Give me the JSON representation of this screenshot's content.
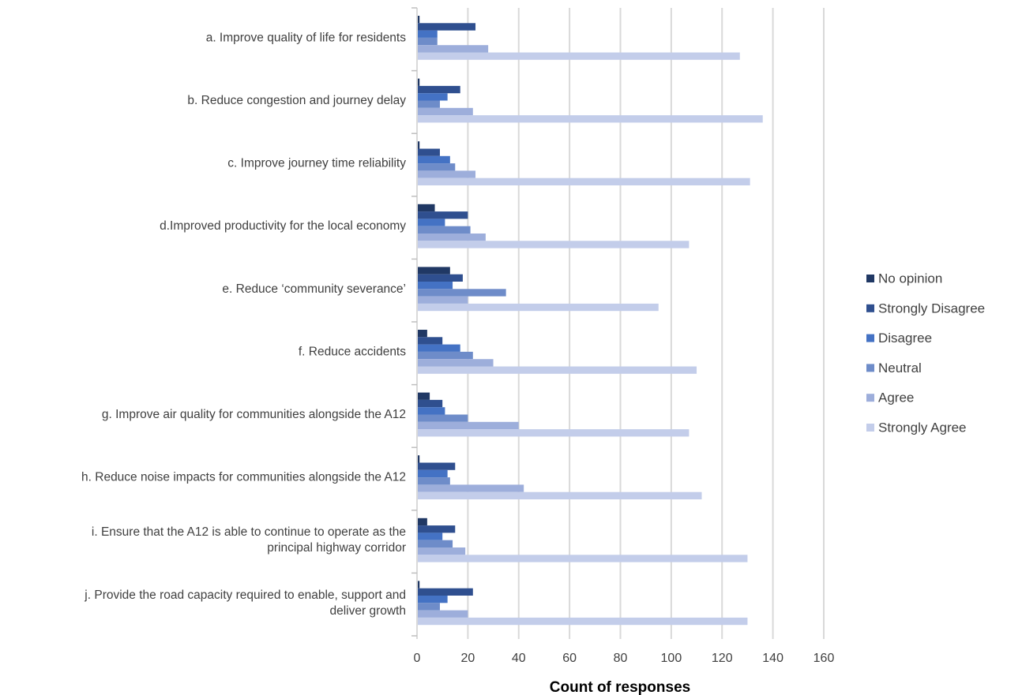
{
  "chart_data": {
    "type": "bar",
    "orientation": "horizontal",
    "title": "",
    "xlabel": "Count of responses",
    "ylabel": "",
    "xlim": [
      0,
      160
    ],
    "xticks": [
      0,
      20,
      40,
      60,
      80,
      100,
      120,
      140,
      160
    ],
    "grid": true,
    "legend_position": "right",
    "categories": [
      [
        "a. Improve quality of life for residents"
      ],
      [
        "b. Reduce congestion and journey delay"
      ],
      [
        "c. Improve journey time reliability"
      ],
      [
        "d.Improved productivity for the local  economy"
      ],
      [
        "e. Reduce ‘community severance’"
      ],
      [
        "f. Reduce accidents"
      ],
      [
        "g. Improve air quality for communities alongside the A12"
      ],
      [
        "h. Reduce noise impacts for communities alongside the A12"
      ],
      [
        "i.  Ensure that the A12 is able to continue to operate as the",
        "principal highway corridor"
      ],
      [
        "j. Provide the road capacity required to enable, support and",
        "deliver growth"
      ]
    ],
    "series": [
      {
        "name": "No opinion",
        "color": "#203864",
        "values": [
          1,
          1,
          1,
          7,
          13,
          4,
          5,
          1,
          4,
          1
        ]
      },
      {
        "name": "Strongly Disagree",
        "color": "#2F4F8F",
        "values": [
          23,
          17,
          9,
          20,
          18,
          10,
          10,
          15,
          15,
          22
        ]
      },
      {
        "name": "Disagree",
        "color": "#4472C4",
        "values": [
          8,
          12,
          13,
          11,
          14,
          17,
          11,
          12,
          10,
          12
        ]
      },
      {
        "name": "Neutral",
        "color": "#6E8CC9",
        "values": [
          8,
          9,
          15,
          21,
          35,
          22,
          20,
          13,
          14,
          9
        ]
      },
      {
        "name": "Agree",
        "color": "#9DAEDB",
        "values": [
          28,
          22,
          23,
          27,
          20,
          30,
          40,
          42,
          19,
          20
        ]
      },
      {
        "name": "Strongly Agree",
        "color": "#C3CDEA",
        "values": [
          127,
          136,
          131,
          107,
          95,
          110,
          107,
          112,
          130,
          130
        ]
      }
    ]
  }
}
